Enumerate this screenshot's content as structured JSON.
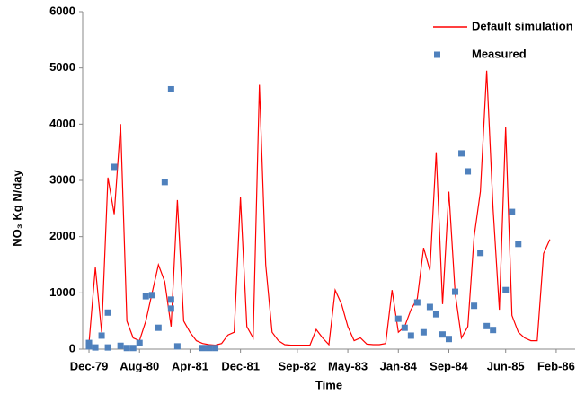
{
  "chart_data": {
    "type": "line",
    "xlabel": "Time",
    "ylabel": "NO₃ Kg N/day",
    "xlim": [
      "1979-11",
      "1986-05"
    ],
    "ylim": [
      0,
      6000
    ],
    "yticks": [
      0,
      1000,
      2000,
      3000,
      4000,
      5000,
      6000
    ],
    "xticks": [
      {
        "value": "1979-12",
        "label": "Dec-79"
      },
      {
        "value": "1980-08",
        "label": "Aug-80"
      },
      {
        "value": "1981-04",
        "label": "Apr-81"
      },
      {
        "value": "1981-12",
        "label": "Dec-81"
      },
      {
        "value": "1982-09",
        "label": "Sep-82"
      },
      {
        "value": "1983-05",
        "label": "May-83"
      },
      {
        "value": "1984-01",
        "label": "Jan-84"
      },
      {
        "value": "1984-09",
        "label": "Sep-84"
      },
      {
        "value": "1985-06",
        "label": "Jun-85"
      },
      {
        "value": "1986-02",
        "label": "Feb-86"
      }
    ],
    "grid": false,
    "legend": "upper right",
    "series": [
      {
        "name": "Default simulation",
        "type": "line",
        "color": "#ff0000",
        "x": [
          "1979-12",
          "1980-01",
          "1980-02",
          "1980-03",
          "1980-04",
          "1980-05",
          "1980-06",
          "1980-07",
          "1980-08",
          "1980-09",
          "1980-10",
          "1980-11",
          "1980-12",
          "1981-01",
          "1981-02",
          "1981-03",
          "1981-04",
          "1981-05",
          "1981-06",
          "1981-07",
          "1981-08",
          "1981-09",
          "1981-10",
          "1981-11",
          "1981-12",
          "1982-01",
          "1982-02",
          "1982-03",
          "1982-04",
          "1982-05",
          "1982-06",
          "1982-07",
          "1982-08",
          "1982-09",
          "1982-10",
          "1982-11",
          "1982-12",
          "1983-01",
          "1983-02",
          "1983-03",
          "1983-04",
          "1983-05",
          "1983-06",
          "1983-07",
          "1983-08",
          "1983-09",
          "1983-10",
          "1983-11",
          "1983-12",
          "1984-01",
          "1984-02",
          "1984-03",
          "1984-04",
          "1984-05",
          "1984-06",
          "1984-07",
          "1984-08",
          "1984-09",
          "1984-10",
          "1984-11",
          "1984-12",
          "1985-01",
          "1985-02",
          "1985-03",
          "1985-04",
          "1985-05",
          "1985-06",
          "1985-07",
          "1985-08",
          "1985-09",
          "1985-10",
          "1985-11",
          "1985-12",
          "1986-01"
        ],
        "values": [
          100,
          1450,
          300,
          3050,
          2400,
          4000,
          500,
          200,
          150,
          500,
          1000,
          1500,
          1200,
          400,
          2650,
          500,
          300,
          150,
          100,
          80,
          70,
          100,
          250,
          300,
          2700,
          400,
          200,
          4700,
          1500,
          300,
          150,
          80,
          70,
          70,
          70,
          70,
          350,
          200,
          80,
          1050,
          800,
          400,
          150,
          200,
          90,
          80,
          80,
          100,
          1050,
          300,
          400,
          700,
          900,
          1800,
          1400,
          3500,
          800,
          2800,
          1000,
          200,
          400,
          2000,
          2800,
          4950,
          2500,
          700,
          3950,
          600,
          300,
          200,
          150,
          150,
          1700,
          1950
        ]
      },
      {
        "name": "Measured",
        "type": "scatter",
        "color": "#4f81bd",
        "x": [
          "1979-12",
          "1979-12",
          "1980-01",
          "1980-02",
          "1980-03",
          "1980-03",
          "1980-04",
          "1980-05",
          "1980-06",
          "1980-07",
          "1980-08",
          "1980-09",
          "1980-10",
          "1980-11",
          "1980-12",
          "1981-01",
          "1981-01",
          "1981-01",
          "1981-02",
          "1981-06",
          "1981-07",
          "1981-08",
          "1984-01",
          "1984-02",
          "1984-03",
          "1984-04",
          "1984-05",
          "1984-06",
          "1984-07",
          "1984-08",
          "1984-09",
          "1984-10",
          "1984-11",
          "1984-12",
          "1985-01",
          "1985-02",
          "1985-03",
          "1985-04",
          "1985-06",
          "1985-07",
          "1985-08"
        ],
        "values": [
          110,
          50,
          30,
          240,
          30,
          650,
          3240,
          60,
          20,
          20,
          110,
          940,
          960,
          380,
          2970,
          880,
          720,
          4620,
          50,
          20,
          20,
          20,
          540,
          380,
          240,
          830,
          300,
          750,
          620,
          260,
          180,
          1020,
          3480,
          3160,
          770,
          1710,
          410,
          340,
          1050,
          2440,
          1870
        ]
      }
    ]
  }
}
